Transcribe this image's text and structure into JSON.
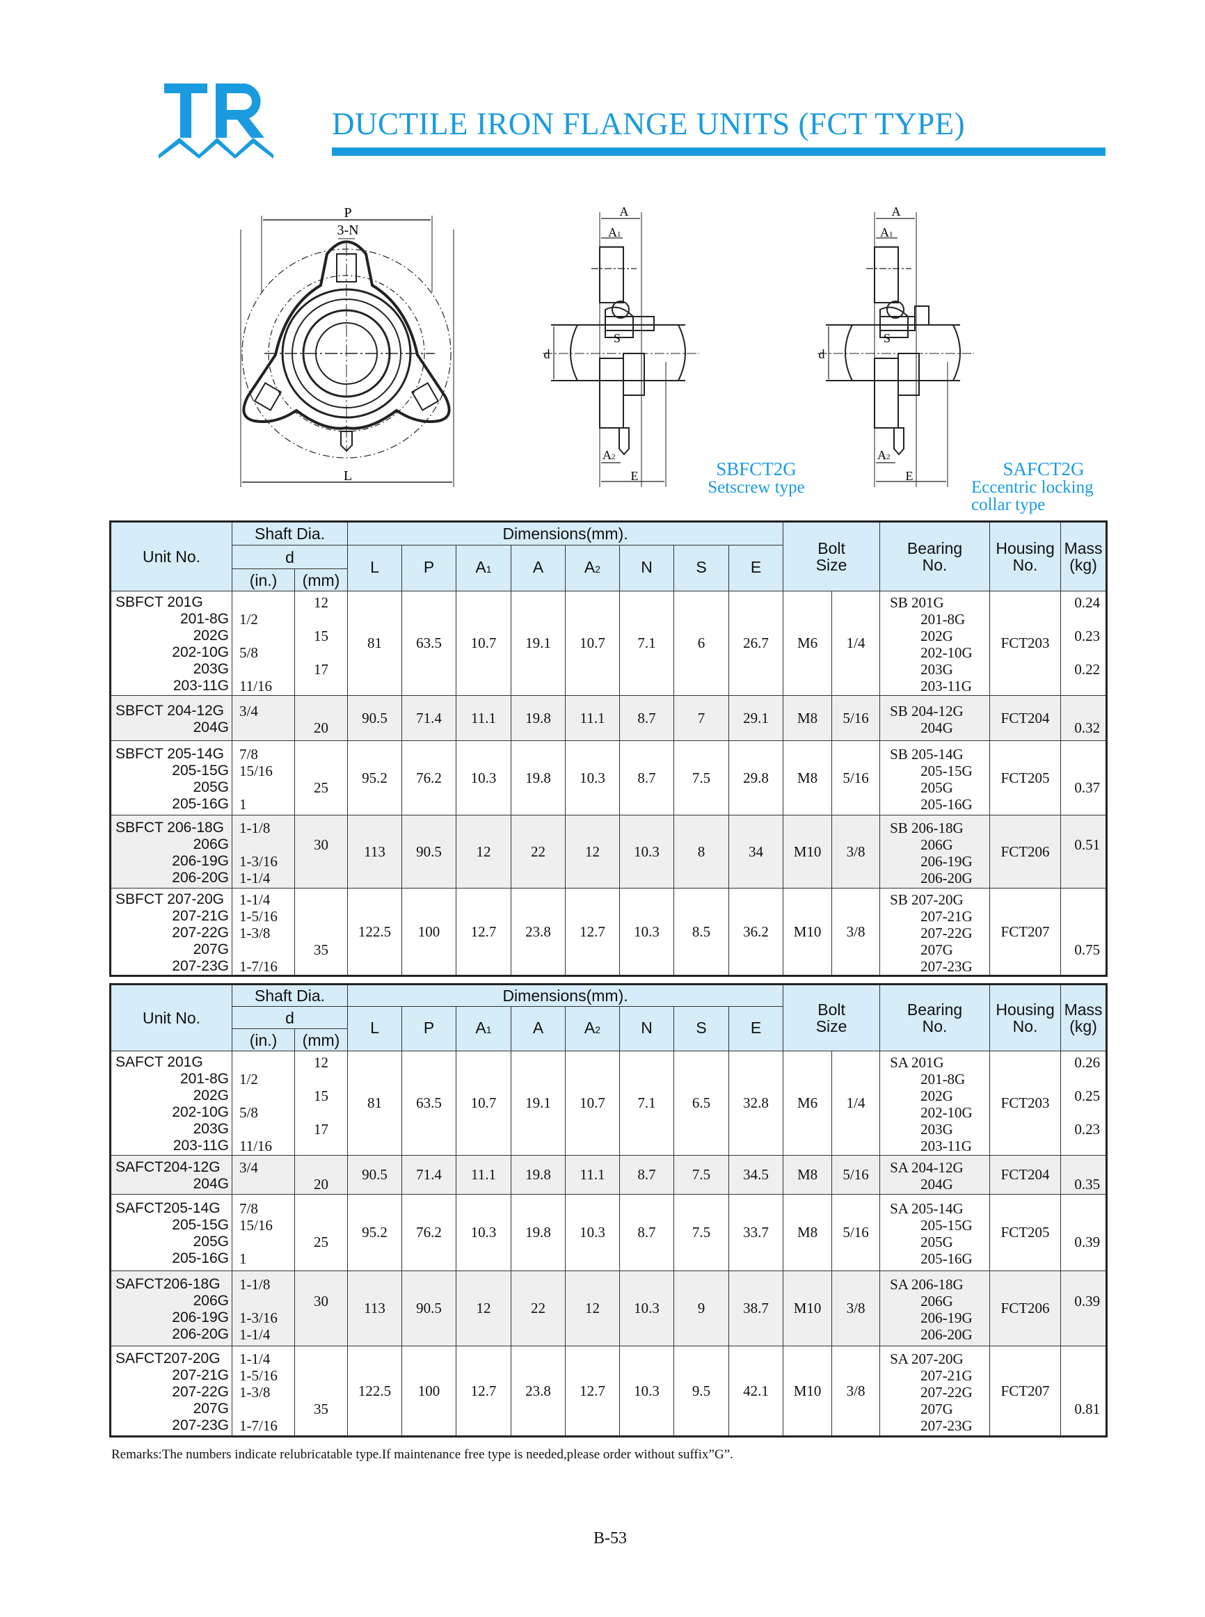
{
  "logo": {
    "text": "TR",
    "color": "#1a9be0"
  },
  "title": "DUCTILE IRON FLANGE UNITS (FCT TYPE)",
  "accent_color": "#1a9be0",
  "drawings": {
    "front": {
      "p": "P",
      "n": "3-N",
      "l": "L"
    },
    "side1": {
      "a": "A",
      "a1": "A",
      "a1_sub": "1",
      "d": "d",
      "s": "S",
      "a2": "A",
      "a2_sub": "2",
      "e": "E",
      "model": "SBFCT2G",
      "type": "Setscrew type"
    },
    "side2": {
      "a": "A",
      "a1": "A",
      "a1_sub": "1",
      "d": "d",
      "s": "S",
      "a2": "A",
      "a2_sub": "2",
      "e": "E",
      "model": "SAFCT2G",
      "type_line1": "Eccentric locking",
      "type_line2": "collar type"
    }
  },
  "header": {
    "unit_no": "Unit No.",
    "shaft_dia": "Shaft Dia.",
    "d": "d",
    "in": "(in.)",
    "mm": "(mm)",
    "dimensions": "Dimensions(mm).",
    "dims": [
      "L",
      "P",
      "A",
      "A",
      "A",
      "N",
      "S",
      "E"
    ],
    "dims_sub": [
      "",
      "",
      "1",
      "",
      "2",
      "",
      "",
      ""
    ],
    "bolt": "Bolt",
    "size": "Size",
    "bearing": "Bearing",
    "bearing_no": "No.",
    "housing": "Housing",
    "housing_no": "No.",
    "mass": "Mass",
    "kg": "(kg)"
  },
  "tables": [
    {
      "rows": [
        {
          "unit": [
            "SBFCT 201G",
            "201-8G",
            "202G",
            "202-10G",
            "203G",
            "203-11G"
          ],
          "in": [
            "",
            "1/2",
            "",
            "5/8",
            "",
            "11/16"
          ],
          "mm": [
            "12",
            "",
            "15",
            "",
            "17",
            ""
          ],
          "dims": [
            "81",
            "63.5",
            "10.7",
            "19.1",
            "10.7",
            "7.1",
            "6",
            "26.7"
          ],
          "bolt_m": "M6",
          "bolt_in": "1/4",
          "bearing": [
            "SB 201G",
            "201-8G",
            "202G",
            "202-10G",
            "203G",
            "203-11G"
          ],
          "housing": "FCT203",
          "mass": [
            "0.24",
            "",
            "0.23",
            "",
            "0.22",
            ""
          ]
        },
        {
          "unit": [
            "SBFCT 204-12G",
            "204G"
          ],
          "in": [
            "3/4",
            ""
          ],
          "mm": [
            "",
            "20"
          ],
          "dims": [
            "90.5",
            "71.4",
            "11.1",
            "19.8",
            "11.1",
            "8.7",
            "7",
            "29.1"
          ],
          "bolt_m": "M8",
          "bolt_in": "5/16",
          "bearing": [
            "SB 204-12G",
            "204G"
          ],
          "housing": "FCT204",
          "mass": [
            "",
            "0.32"
          ]
        },
        {
          "unit": [
            "SBFCT 205-14G",
            "205-15G",
            "205G",
            "205-16G"
          ],
          "in": [
            "7/8",
            "15/16",
            "",
            "1"
          ],
          "mm": [
            "",
            "",
            "25",
            ""
          ],
          "dims": [
            "95.2",
            "76.2",
            "10.3",
            "19.8",
            "10.3",
            "8.7",
            "7.5",
            "29.8"
          ],
          "bolt_m": "M8",
          "bolt_in": "5/16",
          "bearing": [
            "SB 205-14G",
            "205-15G",
            "205G",
            "205-16G"
          ],
          "housing": "FCT205",
          "mass": [
            "",
            "",
            "0.37",
            ""
          ]
        },
        {
          "unit": [
            "SBFCT 206-18G",
            "206G",
            "206-19G",
            "206-20G"
          ],
          "in": [
            "1-1/8",
            "",
            "1-3/16",
            "1-1/4"
          ],
          "mm": [
            "",
            "30",
            "",
            ""
          ],
          "dims": [
            "113",
            "90.5",
            "12",
            "22",
            "12",
            "10.3",
            "8",
            "34"
          ],
          "bolt_m": "M10",
          "bolt_in": "3/8",
          "bearing": [
            "SB 206-18G",
            "206G",
            "206-19G",
            "206-20G"
          ],
          "housing": "FCT206",
          "mass": [
            "",
            "0.51",
            "",
            ""
          ]
        },
        {
          "unit": [
            "SBFCT 207-20G",
            "207-21G",
            "207-22G",
            "207G",
            "207-23G"
          ],
          "in": [
            "1-1/4",
            "1-5/16",
            "1-3/8",
            "",
            "1-7/16"
          ],
          "mm": [
            "",
            "",
            "",
            "35",
            ""
          ],
          "dims": [
            "122.5",
            "100",
            "12.7",
            "23.8",
            "12.7",
            "10.3",
            "8.5",
            "36.2"
          ],
          "bolt_m": "M10",
          "bolt_in": "3/8",
          "bearing": [
            "SB 207-20G",
            "207-21G",
            "207-22G",
            "207G",
            "207-23G"
          ],
          "housing": "FCT207",
          "mass": [
            "",
            "",
            "",
            "0.75",
            ""
          ]
        }
      ]
    },
    {
      "rows": [
        {
          "unit": [
            "SAFCT 201G",
            "201-8G",
            "202G",
            "202-10G",
            "203G",
            "203-11G"
          ],
          "in": [
            "",
            "1/2",
            "",
            "5/8",
            "",
            "11/16"
          ],
          "mm": [
            "12",
            "",
            "15",
            "",
            "17",
            ""
          ],
          "dims": [
            "81",
            "63.5",
            "10.7",
            "19.1",
            "10.7",
            "7.1",
            "6.5",
            "32.8"
          ],
          "bolt_m": "M6",
          "bolt_in": "1/4",
          "bearing": [
            "SA 201G",
            "201-8G",
            "202G",
            "202-10G",
            "203G",
            "203-11G"
          ],
          "housing": "FCT203",
          "mass": [
            "0.26",
            "",
            "0.25",
            "",
            "0.23",
            ""
          ]
        },
        {
          "unit": [
            "SAFCT204-12G",
            "204G"
          ],
          "in": [
            "3/4",
            ""
          ],
          "mm": [
            "",
            "20"
          ],
          "dims": [
            "90.5",
            "71.4",
            "11.1",
            "19.8",
            "11.1",
            "8.7",
            "7.5",
            "34.5"
          ],
          "bolt_m": "M8",
          "bolt_in": "5/16",
          "bearing": [
            "SA 204-12G",
            "204G"
          ],
          "housing": "FCT204",
          "mass": [
            "",
            "0.35"
          ]
        },
        {
          "unit": [
            "SAFCT205-14G",
            "205-15G",
            "205G",
            "205-16G"
          ],
          "in": [
            "7/8",
            "15/16",
            "",
            "1"
          ],
          "mm": [
            "",
            "",
            "25",
            ""
          ],
          "dims": [
            "95.2",
            "76.2",
            "10.3",
            "19.8",
            "10.3",
            "8.7",
            "7.5",
            "33.7"
          ],
          "bolt_m": "M8",
          "bolt_in": "5/16",
          "bearing": [
            "SA 205-14G",
            "205-15G",
            "205G",
            "205-16G"
          ],
          "housing": "FCT205",
          "mass": [
            "",
            "",
            "0.39",
            ""
          ]
        },
        {
          "unit": [
            "SAFCT206-18G",
            "206G",
            "206-19G",
            "206-20G"
          ],
          "in": [
            "1-1/8",
            "",
            "1-3/16",
            "1-1/4"
          ],
          "mm": [
            "",
            "30",
            "",
            ""
          ],
          "dims": [
            "113",
            "90.5",
            "12",
            "22",
            "12",
            "10.3",
            "9",
            "38.7"
          ],
          "bolt_m": "M10",
          "bolt_in": "3/8",
          "bearing": [
            "SA 206-18G",
            "206G",
            "206-19G",
            "206-20G"
          ],
          "housing": "FCT206",
          "mass": [
            "",
            "0.39",
            "",
            ""
          ]
        },
        {
          "unit": [
            "SAFCT207-20G",
            "207-21G",
            "207-22G",
            "207G",
            "207-23G"
          ],
          "in": [
            "1-1/4",
            "1-5/16",
            "1-3/8",
            "",
            "1-7/16"
          ],
          "mm": [
            "",
            "",
            "",
            "35",
            ""
          ],
          "dims": [
            "122.5",
            "100",
            "12.7",
            "23.8",
            "12.7",
            "10.3",
            "9.5",
            "42.1"
          ],
          "bolt_m": "M10",
          "bolt_in": "3/8",
          "bearing": [
            "SA 207-20G",
            "207-21G",
            "207-22G",
            "207G",
            "207-23G"
          ],
          "housing": "FCT207",
          "mass": [
            "",
            "",
            "",
            "0.81",
            ""
          ]
        }
      ]
    }
  ],
  "remarks": "Remarks:The numbers indicate relubricatable type.If maintenance free type is needed,please order without suffix”G”.",
  "page_number": "B-53"
}
